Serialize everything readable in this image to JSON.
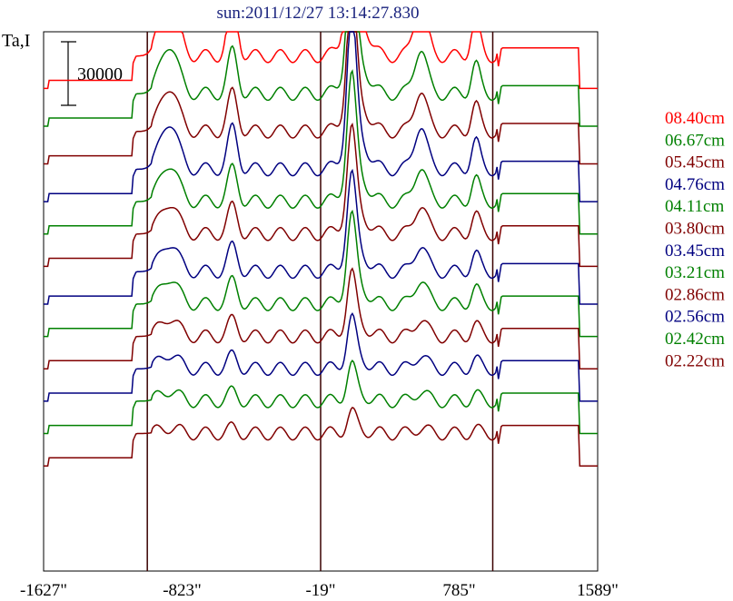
{
  "chart_data": {
    "type": "line",
    "title": "sun:2011/12/27 13:14:27.830",
    "ylabel": "Ta,I",
    "scale_bar_label": "30000",
    "scale_bar_value": 30000,
    "xlim": [
      -1627,
      1589
    ],
    "x_ticks": [
      "-1627\"",
      "-823\"",
      "-19\"",
      "785\"",
      "1589\""
    ],
    "x_tick_values": [
      -1627,
      -823,
      -19,
      785,
      1589
    ],
    "vertical_lines_x": [
      -1025,
      -19,
      980
    ],
    "series": [
      {
        "name": "08.40cm",
        "color": "#ff0000",
        "baseline": 0.91,
        "peak_scale": 1.0
      },
      {
        "name": "06.67cm",
        "color": "#008000",
        "baseline": 0.84,
        "peak_scale": 0.78
      },
      {
        "name": "05.45cm",
        "color": "#800000",
        "baseline": 0.77,
        "peak_scale": 0.71
      },
      {
        "name": "04.76cm",
        "color": "#000080",
        "baseline": 0.7,
        "peak_scale": 0.75
      },
      {
        "name": "04.11cm",
        "color": "#008000",
        "baseline": 0.64,
        "peak_scale": 0.6
      },
      {
        "name": "03.80cm",
        "color": "#800000",
        "baseline": 0.58,
        "peak_scale": 0.5
      },
      {
        "name": "03.45cm",
        "color": "#000080",
        "baseline": 0.51,
        "peak_scale": 0.46
      },
      {
        "name": "03.21cm",
        "color": "#008000",
        "baseline": 0.45,
        "peak_scale": 0.42
      },
      {
        "name": "02.86cm",
        "color": "#800000",
        "baseline": 0.39,
        "peak_scale": 0.3
      },
      {
        "name": "02.56cm",
        "color": "#000080",
        "baseline": 0.33,
        "peak_scale": 0.24
      },
      {
        "name": "02.42cm",
        "color": "#008000",
        "baseline": 0.27,
        "peak_scale": 0.17
      },
      {
        "name": "02.22cm",
        "color": "#800000",
        "baseline": 0.21,
        "peak_scale": 0.1
      }
    ]
  }
}
